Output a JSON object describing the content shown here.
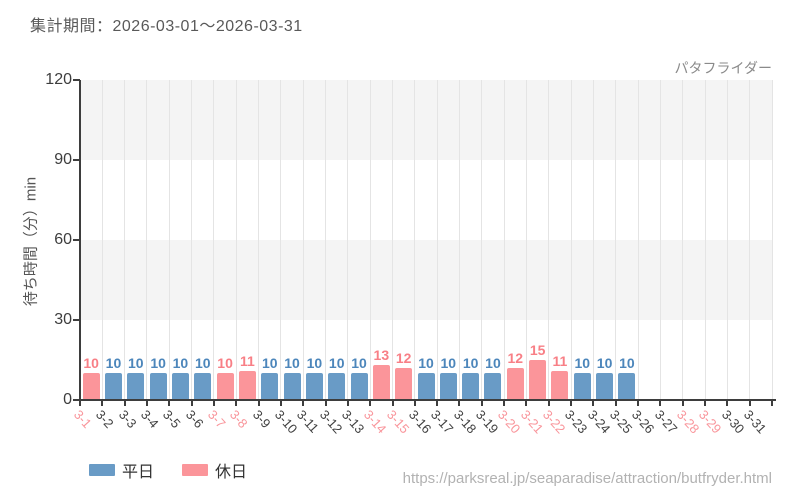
{
  "header": {
    "period_label": "集計期間：2026-03-01～2026-03-31"
  },
  "chart_data": {
    "type": "bar",
    "title": "パタフライダー",
    "xlabel": "",
    "ylabel": "待ち時間（分）min",
    "ylim": [
      0,
      120
    ],
    "yticks": [
      0,
      30,
      60,
      90,
      120
    ],
    "grid": "vertical-lines-and-alternating-horizontal-bands",
    "legend_position": "bottom-left",
    "x_tick_rotation_deg": 48,
    "categories": [
      "3-1",
      "3-2",
      "3-3",
      "3-4",
      "3-5",
      "3-6",
      "3-7",
      "3-8",
      "3-9",
      "3-10",
      "3-11",
      "3-12",
      "3-13",
      "3-14",
      "3-15",
      "3-16",
      "3-17",
      "3-18",
      "3-19",
      "3-20",
      "3-21",
      "3-22",
      "3-23",
      "3-24",
      "3-25",
      "3-26",
      "3-27",
      "3-28",
      "3-29",
      "3-30",
      "3-31"
    ],
    "series": [
      {
        "name": "平日",
        "day_type": "weekday"
      },
      {
        "name": "休日",
        "day_type": "holiday"
      }
    ],
    "points": [
      {
        "category": "3-1",
        "value": 10,
        "day_type": "holiday"
      },
      {
        "category": "3-2",
        "value": 10,
        "day_type": "weekday"
      },
      {
        "category": "3-3",
        "value": 10,
        "day_type": "weekday"
      },
      {
        "category": "3-4",
        "value": 10,
        "day_type": "weekday"
      },
      {
        "category": "3-5",
        "value": 10,
        "day_type": "weekday"
      },
      {
        "category": "3-6",
        "value": 10,
        "day_type": "weekday"
      },
      {
        "category": "3-7",
        "value": 10,
        "day_type": "holiday"
      },
      {
        "category": "3-8",
        "value": 11,
        "day_type": "holiday"
      },
      {
        "category": "3-9",
        "value": 10,
        "day_type": "weekday"
      },
      {
        "category": "3-10",
        "value": 10,
        "day_type": "weekday"
      },
      {
        "category": "3-11",
        "value": 10,
        "day_type": "weekday"
      },
      {
        "category": "3-12",
        "value": 10,
        "day_type": "weekday"
      },
      {
        "category": "3-13",
        "value": 10,
        "day_type": "weekday"
      },
      {
        "category": "3-14",
        "value": 13,
        "day_type": "holiday"
      },
      {
        "category": "3-15",
        "value": 12,
        "day_type": "holiday"
      },
      {
        "category": "3-16",
        "value": 10,
        "day_type": "weekday"
      },
      {
        "category": "3-17",
        "value": 10,
        "day_type": "weekday"
      },
      {
        "category": "3-18",
        "value": 10,
        "day_type": "weekday"
      },
      {
        "category": "3-19",
        "value": 10,
        "day_type": "weekday"
      },
      {
        "category": "3-20",
        "value": 12,
        "day_type": "holiday"
      },
      {
        "category": "3-21",
        "value": 15,
        "day_type": "holiday"
      },
      {
        "category": "3-22",
        "value": 11,
        "day_type": "holiday"
      },
      {
        "category": "3-23",
        "value": 10,
        "day_type": "weekday"
      },
      {
        "category": "3-24",
        "value": 10,
        "day_type": "weekday"
      },
      {
        "category": "3-25",
        "value": 10,
        "day_type": "weekday"
      },
      {
        "category": "3-26",
        "value": null,
        "day_type": "weekday"
      },
      {
        "category": "3-27",
        "value": null,
        "day_type": "weekday"
      },
      {
        "category": "3-28",
        "value": null,
        "day_type": "holiday"
      },
      {
        "category": "3-29",
        "value": null,
        "day_type": "holiday"
      },
      {
        "category": "3-30",
        "value": null,
        "day_type": "weekday"
      },
      {
        "category": "3-31",
        "value": null,
        "day_type": "weekday"
      }
    ]
  },
  "legend": {
    "items": [
      {
        "label": "平日",
        "day_type": "weekday"
      },
      {
        "label": "休日",
        "day_type": "holiday"
      }
    ]
  },
  "footer": {
    "url": "https://parksreal.jp/seaparadise/attraction/butfryder.html"
  },
  "colors": {
    "weekday_bar": "#699bc6",
    "holiday_bar": "#fb959a",
    "weekday_number": "#4c86bb",
    "holiday_number": "#f87f86",
    "weekday_tick_label": "#404040",
    "holiday_tick_label": "#f9959b",
    "band_gray": "#f4f4f4",
    "grid_line": "#e4e4e4",
    "axis_line": "#3d3d3d"
  }
}
